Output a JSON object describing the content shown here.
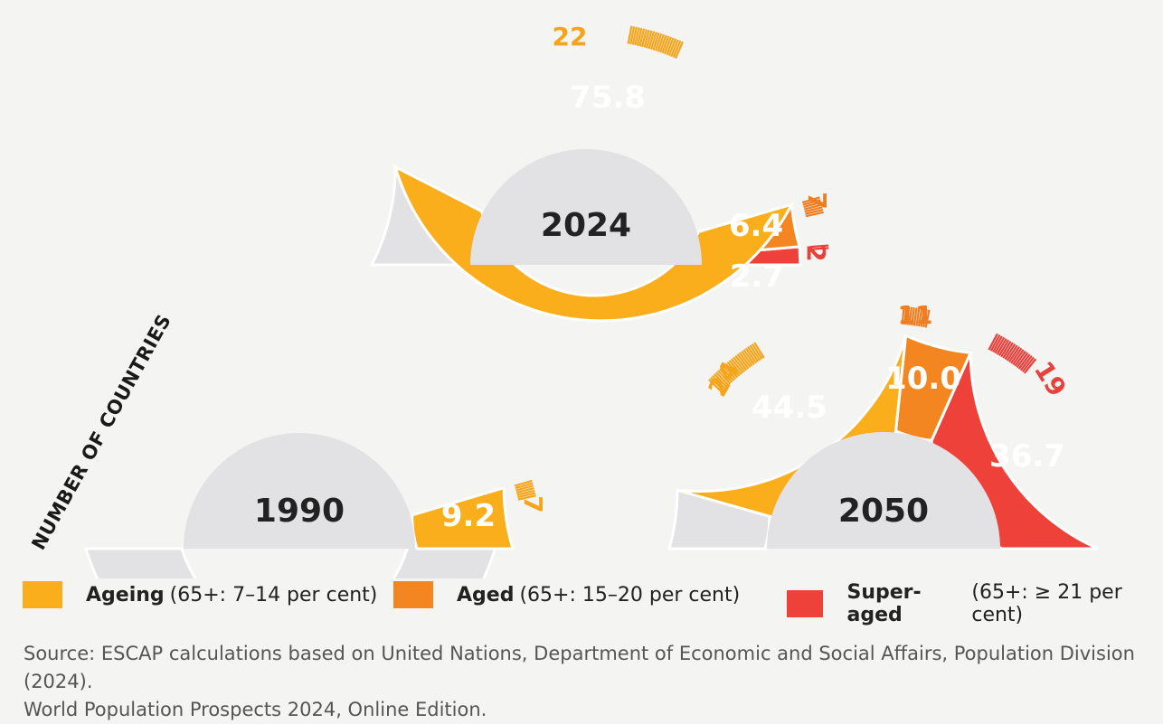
{
  "chart_data": {
    "type": "pie",
    "subtype": "semi-donut",
    "axis_label": "NUMBER OF COUNTRIES",
    "series_names": [
      "Ageing",
      "Aged",
      "Super-aged"
    ],
    "charts": [
      {
        "year": "1990",
        "percent_values": {
          "Ageing": 9.2,
          "Aged": 0,
          "Super-aged": 0
        },
        "percent_labels": {
          "Ageing": "9.2"
        },
        "country_counts": {
          "Ageing": 7
        }
      },
      {
        "year": "2024",
        "percent_values": {
          "Ageing": 75.8,
          "Aged": 6.4,
          "Super-aged": 2.7
        },
        "percent_labels": {
          "Ageing": "75.8",
          "Aged": "6.4",
          "Super-aged": "2.7"
        },
        "country_counts": {
          "Ageing": 22,
          "Aged": 7,
          "Super-aged": 2
        }
      },
      {
        "year": "2050",
        "percent_values": {
          "Ageing": 44.5,
          "Aged": 10.0,
          "Super-aged": 36.7
        },
        "percent_labels": {
          "Ageing": "44.5",
          "Aged": "10.0",
          "Super-aged": "36.7"
        },
        "country_counts": {
          "Ageing": 24,
          "Aged": 11,
          "Super-aged": 19
        }
      }
    ]
  },
  "colors": {
    "Ageing": "#fbae1b",
    "Aged": "#f48622",
    "Super-aged": "#ee4139",
    "remainder": "#e2e2e4",
    "inner": "#e2e2e4",
    "count_Ageing": "#f4a51c",
    "count_Aged": "#ef7d22",
    "count_Super-aged": "#e8403b"
  },
  "legend": [
    {
      "name": "Ageing",
      "desc": "(65+: 7–14 per cent)"
    },
    {
      "name": "Aged",
      "desc": "(65+: 15–20 per cent)"
    },
    {
      "name": "Super-aged",
      "desc": "(65+: ≥ 21 per cent)"
    }
  ],
  "source": {
    "line1": "Source: ESCAP calculations based on United Nations, Department of Economic and Social Affairs, Population Division (2024).",
    "line2": "World Population Prospects 2024, Online Edition."
  }
}
